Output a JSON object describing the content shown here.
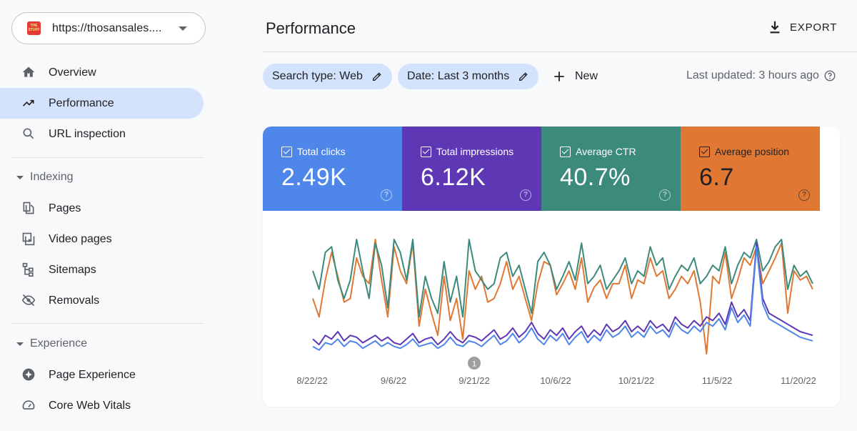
{
  "property": {
    "url": "https://thosansales....",
    "logo_text": "THE STUFF"
  },
  "sidebar": {
    "items": [
      {
        "id": "overview",
        "label": "Overview",
        "icon": "home-icon"
      },
      {
        "id": "performance",
        "label": "Performance",
        "icon": "trending-up-icon",
        "active": true
      },
      {
        "id": "url-inspection",
        "label": "URL inspection",
        "icon": "search-icon"
      }
    ],
    "sections": [
      {
        "label": "Indexing",
        "items": [
          {
            "label": "Pages",
            "icon": "pages-icon"
          },
          {
            "label": "Video pages",
            "icon": "video-pages-icon"
          },
          {
            "label": "Sitemaps",
            "icon": "sitemap-icon"
          },
          {
            "label": "Removals",
            "icon": "eye-off-icon"
          }
        ]
      },
      {
        "label": "Experience",
        "items": [
          {
            "label": "Page Experience",
            "icon": "page-experience-icon"
          },
          {
            "label": "Core Web Vitals",
            "icon": "gauge-icon"
          }
        ]
      }
    ]
  },
  "header": {
    "title": "Performance",
    "export_label": "EXPORT"
  },
  "filters": {
    "search_type": "Search type: Web",
    "date": "Date: Last 3 months",
    "new_label": "New",
    "last_updated": "Last updated: 3 hours ago"
  },
  "metrics": [
    {
      "label": "Total clicks",
      "value": "2.49K",
      "color": "#4e86ea"
    },
    {
      "label": "Total impressions",
      "value": "6.12K",
      "color": "#5d37b4"
    },
    {
      "label": "Average CTR",
      "value": "40.7%",
      "color": "#3b8a7b"
    },
    {
      "label": "Average position",
      "value": "6.7",
      "color": "#e07834"
    }
  ],
  "chart_data": {
    "type": "line",
    "x_ticks": [
      "8/22/22",
      "9/6/22",
      "9/21/22",
      "10/6/22",
      "10/21/22",
      "11/5/22",
      "11/20/22"
    ],
    "annotation": "1",
    "series": [
      {
        "color": "#e07834",
        "values": [
          0.3,
          0.2,
          0.4,
          0.55,
          0.42,
          0.28,
          0.3,
          0.52,
          0.42,
          0.38,
          0.62,
          0.4,
          0.2,
          0.58,
          0.45,
          0.38,
          0.6,
          0.15,
          0.35,
          0.22,
          0.1,
          0.42,
          0.18,
          0.3,
          0.08,
          0.45,
          0.35,
          0.42,
          0.28,
          0.3,
          0.38,
          0.5,
          0.35,
          0.42,
          0.3,
          0.18,
          0.38,
          0.5,
          0.48,
          0.32,
          0.38,
          0.45,
          0.35,
          0.52,
          0.28,
          0.36,
          0.4,
          0.3,
          0.38,
          0.38,
          0.48,
          0.3,
          0.4,
          0.38,
          0.52,
          0.42,
          0.45,
          0.3,
          0.35,
          0.42,
          0.38,
          0.45,
          0.28,
          0.0,
          0.42,
          0.38,
          0.55,
          0.3,
          0.4,
          0.52,
          0.48,
          0.58,
          0.38,
          0.45,
          0.52,
          0.6,
          0.22,
          0.45,
          0.4,
          0.42,
          0.35
        ]
      },
      {
        "color": "#3b8a7b",
        "values": [
          0.45,
          0.35,
          0.55,
          0.58,
          0.4,
          0.3,
          0.4,
          0.62,
          0.45,
          0.3,
          0.6,
          0.48,
          0.25,
          0.62,
          0.55,
          0.4,
          0.62,
          0.2,
          0.42,
          0.3,
          0.22,
          0.5,
          0.28,
          0.42,
          0.2,
          0.62,
          0.45,
          0.4,
          0.35,
          0.38,
          0.52,
          0.55,
          0.42,
          0.48,
          0.35,
          0.22,
          0.5,
          0.55,
          0.48,
          0.35,
          0.42,
          0.5,
          0.4,
          0.6,
          0.38,
          0.42,
          0.48,
          0.35,
          0.4,
          0.45,
          0.52,
          0.38,
          0.45,
          0.42,
          0.58,
          0.48,
          0.52,
          0.35,
          0.42,
          0.48,
          0.45,
          0.52,
          0.38,
          0.42,
          0.48,
          0.45,
          0.58,
          0.38,
          0.48,
          0.55,
          0.52,
          0.62,
          0.45,
          0.5,
          0.58,
          0.62,
          0.35,
          0.48,
          0.42,
          0.45,
          0.38
        ]
      },
      {
        "color": "#5d37b4",
        "values": [
          0.08,
          0.05,
          0.1,
          0.08,
          0.12,
          0.07,
          0.1,
          0.09,
          0.06,
          0.08,
          0.1,
          0.07,
          0.09,
          0.06,
          0.05,
          0.08,
          0.11,
          0.06,
          0.08,
          0.09,
          0.05,
          0.08,
          0.12,
          0.08,
          0.06,
          0.1,
          0.09,
          0.07,
          0.1,
          0.13,
          0.08,
          0.1,
          0.14,
          0.09,
          0.12,
          0.17,
          0.11,
          0.08,
          0.13,
          0.1,
          0.14,
          0.08,
          0.12,
          0.15,
          0.09,
          0.13,
          0.1,
          0.16,
          0.12,
          0.14,
          0.18,
          0.12,
          0.15,
          0.12,
          0.18,
          0.14,
          0.16,
          0.12,
          0.2,
          0.16,
          0.14,
          0.18,
          0.15,
          0.2,
          0.18,
          0.22,
          0.16,
          0.28,
          0.2,
          0.24,
          0.18,
          0.6,
          0.3,
          0.22,
          0.2,
          0.18,
          0.16,
          0.14,
          0.12,
          0.11,
          0.1
        ]
      },
      {
        "color": "#4e86ea",
        "values": [
          0.04,
          0.02,
          0.06,
          0.05,
          0.08,
          0.04,
          0.07,
          0.06,
          0.03,
          0.05,
          0.07,
          0.04,
          0.06,
          0.04,
          0.03,
          0.05,
          0.08,
          0.04,
          0.05,
          0.06,
          0.03,
          0.05,
          0.09,
          0.05,
          0.04,
          0.07,
          0.06,
          0.04,
          0.07,
          0.1,
          0.05,
          0.07,
          0.11,
          0.06,
          0.09,
          0.14,
          0.08,
          0.05,
          0.1,
          0.07,
          0.11,
          0.05,
          0.09,
          0.12,
          0.06,
          0.1,
          0.07,
          0.13,
          0.09,
          0.11,
          0.15,
          0.09,
          0.12,
          0.09,
          0.15,
          0.11,
          0.13,
          0.09,
          0.17,
          0.13,
          0.11,
          0.15,
          0.12,
          0.17,
          0.15,
          0.19,
          0.13,
          0.25,
          0.17,
          0.21,
          0.15,
          0.58,
          0.27,
          0.19,
          0.17,
          0.15,
          0.13,
          0.11,
          0.09,
          0.08,
          0.07
        ]
      }
    ]
  }
}
